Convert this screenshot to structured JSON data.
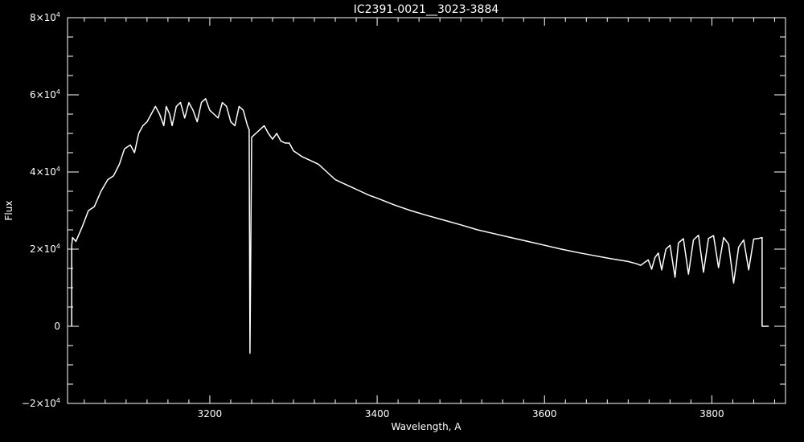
{
  "chart_data": {
    "type": "line",
    "title": "IC2391-0021__3023-3884",
    "xlabel": "Wavelength, A",
    "ylabel": "Flux",
    "xlim": [
      3030,
      3888
    ],
    "ylim": [
      -20000,
      80000
    ],
    "x_ticks": [
      3200,
      3400,
      3600,
      3800
    ],
    "y_ticks": [
      {
        "value": 80000,
        "mantissa": "8",
        "sign": "",
        "exp": "4"
      },
      {
        "value": 60000,
        "mantissa": "6",
        "sign": "",
        "exp": "4"
      },
      {
        "value": 40000,
        "mantissa": "4",
        "sign": "",
        "exp": "4"
      },
      {
        "value": 20000,
        "mantissa": "2",
        "sign": "",
        "exp": "4"
      },
      {
        "value": 0,
        "mantissa": "0",
        "sign": "",
        "exp": ""
      },
      {
        "value": -20000,
        "mantissa": "2",
        "sign": "−",
        "exp": "4"
      }
    ],
    "grid": false,
    "color": "#ffffff",
    "series": [
      {
        "x": [
          3035,
          3035,
          3036,
          3040,
          3048,
          3055,
          3062,
          3070,
          3078,
          3085,
          3092,
          3098,
          3105,
          3110,
          3115,
          3120,
          3125,
          3130,
          3135,
          3140,
          3145,
          3148,
          3152,
          3155,
          3160,
          3165,
          3170,
          3175,
          3180,
          3185,
          3190,
          3195,
          3200,
          3205,
          3210,
          3215,
          3220,
          3225,
          3230,
          3235,
          3240,
          3245,
          3247,
          3248,
          3250,
          3255,
          3260,
          3265,
          3270,
          3275,
          3280,
          3285,
          3290,
          3295,
          3300,
          3310,
          3320,
          3330,
          3340,
          3350,
          3360,
          3370,
          3380,
          3390,
          3400,
          3420,
          3440,
          3460,
          3480,
          3500,
          3520,
          3540,
          3560,
          3580,
          3600,
          3620,
          3640,
          3660,
          3680,
          3700,
          3710,
          3715,
          3720,
          3724,
          3728,
          3732,
          3736,
          3740,
          3745,
          3750,
          3756,
          3760,
          3766,
          3772,
          3778,
          3784,
          3790,
          3796,
          3802,
          3808,
          3814,
          3820,
          3826,
          3832,
          3838,
          3844,
          3850,
          3856,
          3860,
          3860,
          3868
        ],
        "y": [
          0,
          21000,
          23000,
          22000,
          26000,
          30000,
          31000,
          35000,
          38000,
          39000,
          42000,
          46000,
          47000,
          45000,
          50000,
          52000,
          53000,
          55000,
          57000,
          55000,
          52000,
          57000,
          55000,
          52000,
          57000,
          58000,
          54000,
          58000,
          56000,
          53000,
          58000,
          59000,
          56000,
          55000,
          54000,
          58000,
          57000,
          53000,
          52000,
          57000,
          56000,
          52000,
          51000,
          -7000,
          49000,
          50000,
          51000,
          52000,
          50000,
          48500,
          50000,
          48000,
          47500,
          47500,
          45500,
          44000,
          43000,
          42000,
          40000,
          38000,
          37000,
          36000,
          35000,
          34000,
          33200,
          31500,
          30000,
          28700,
          27500,
          26300,
          25000,
          24000,
          23000,
          22000,
          21000,
          20000,
          19100,
          18300,
          17500,
          16800,
          16200,
          15800,
          16600,
          17200,
          14800,
          17800,
          19000,
          14600,
          20000,
          21000,
          12700,
          21600,
          22700,
          13500,
          22400,
          23600,
          14000,
          22800,
          23500,
          15200,
          23000,
          21300,
          11200,
          20500,
          22400,
          14600,
          22600,
          22800,
          23000,
          0,
          0
        ]
      }
    ]
  }
}
